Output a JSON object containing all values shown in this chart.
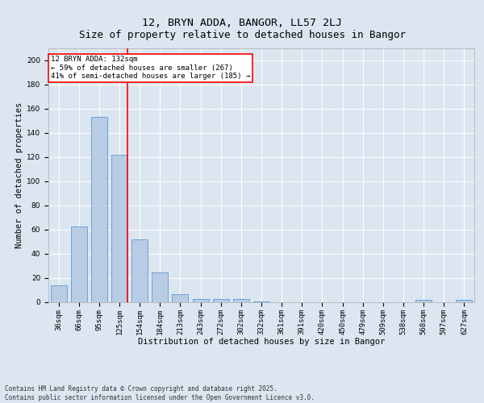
{
  "title": "12, BRYN ADDA, BANGOR, LL57 2LJ",
  "subtitle": "Size of property relative to detached houses in Bangor",
  "xlabel": "Distribution of detached houses by size in Bangor",
  "ylabel": "Number of detached properties",
  "categories": [
    "36sqm",
    "66sqm",
    "95sqm",
    "125sqm",
    "154sqm",
    "184sqm",
    "213sqm",
    "243sqm",
    "272sqm",
    "302sqm",
    "332sqm",
    "361sqm",
    "391sqm",
    "420sqm",
    "450sqm",
    "479sqm",
    "509sqm",
    "538sqm",
    "568sqm",
    "597sqm",
    "627sqm"
  ],
  "values": [
    14,
    63,
    153,
    122,
    52,
    25,
    7,
    3,
    3,
    3,
    1,
    0,
    0,
    0,
    0,
    0,
    0,
    0,
    2,
    0,
    2
  ],
  "bar_color": "#b8cce4",
  "bar_edge_color": "#5b9bd5",
  "vline_x_index": 3,
  "vline_color": "red",
  "annotation_title": "12 BRYN ADDA: 132sqm",
  "annotation_line1": "← 59% of detached houses are smaller (267)",
  "annotation_line2": "41% of semi-detached houses are larger (185) →",
  "annotation_box_color": "white",
  "annotation_box_edge": "red",
  "ylim": [
    0,
    210
  ],
  "yticks": [
    0,
    20,
    40,
    60,
    80,
    100,
    120,
    140,
    160,
    180,
    200
  ],
  "footer_line1": "Contains HM Land Registry data © Crown copyright and database right 2025.",
  "footer_line2": "Contains public sector information licensed under the Open Government Licence v3.0.",
  "background_color": "#dce6f1",
  "plot_bg_color": "#dce6f1",
  "title_fontsize": 9.5,
  "axis_label_fontsize": 7.5,
  "tick_fontsize": 6.5,
  "annotation_fontsize": 6.5,
  "footer_fontsize": 5.5
}
